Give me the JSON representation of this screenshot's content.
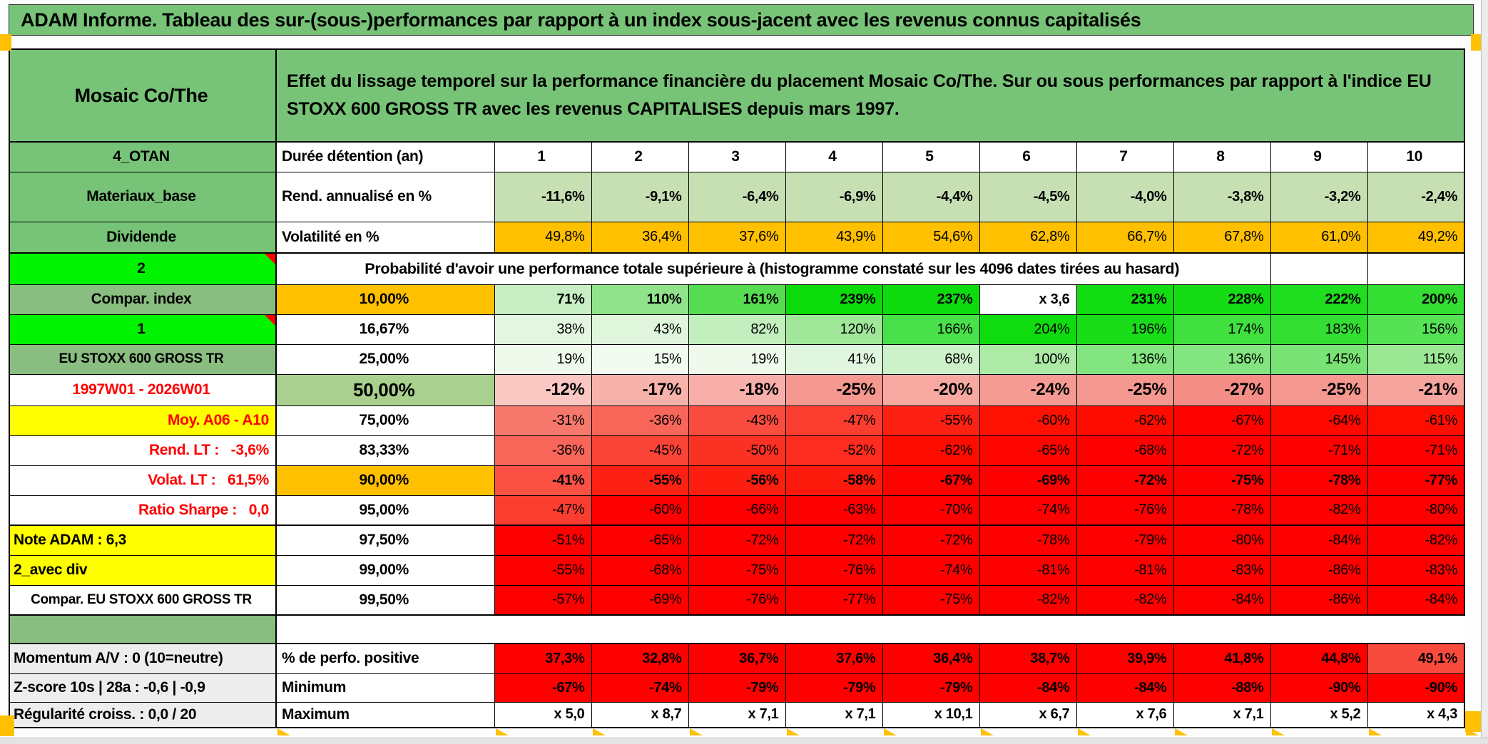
{
  "banner": {
    "title": "ADAM Informe. Tableau des sur-(sous-)performances par rapport à un index sous-jacent avec les revenus connus capitalisés"
  },
  "palette": {
    "header_green": "#77C377",
    "muted_green": "#8ABD80",
    "lime_green": "#00F300",
    "light_green": "#C6E0B4",
    "olive_green": "#A9D08E",
    "orange": "#FFC000",
    "yellow": "#FFFF00",
    "red": "#FE0000",
    "light_gray": "#EDEDED",
    "comment_marker_red": "#FF0000"
  },
  "table": {
    "rows": [
      {
        "kind": "header",
        "a": "Mosaic Co/The",
        "aBg": "#77C377",
        "desc": "Effet du lissage temporel sur la performance financière du placement Mosaic Co/The. Sur ou sous performances par rapport à l'indice EU STOXX 600 GROSS TR avec les revenus CAPITALISES depuis mars 1997.",
        "descBg": "#77C377",
        "thickB": true
      },
      {
        "a": "4_OTAN",
        "aBg": "#77C377",
        "b": "Durée détention (an)",
        "bLeft": true,
        "cells": [
          "1",
          "2",
          "3",
          "4",
          "5",
          "6",
          "7",
          "8",
          "9",
          "10"
        ],
        "cCenter": true,
        "bg": [
          "#FFFFFF",
          "#FFFFFF",
          "#FFFFFF",
          "#FFFFFF",
          "#FFFFFF",
          "#FFFFFF",
          "#FFFFFF",
          "#FFFFFF",
          "#FFFFFF",
          "#FFFFFF"
        ]
      },
      {
        "a": "Materiaux_base",
        "aBg": "#77C377",
        "b": "Rend. annualisé en %",
        "bLeft": true,
        "cBold": true,
        "cells": [
          "-11,6%",
          "-9,1%",
          "-6,4%",
          "-6,9%",
          "-4,4%",
          "-4,5%",
          "-4,0%",
          "-3,8%",
          "-3,2%",
          "-2,4%"
        ],
        "bg": [
          "#C6E0B4",
          "#C6E0B4",
          "#C6E0B4",
          "#C6E0B4",
          "#C6E0B4",
          "#C6E0B4",
          "#C6E0B4",
          "#C6E0B4",
          "#C6E0B4",
          "#C6E0B4"
        ]
      },
      {
        "a": "Dividende",
        "aBg": "#77C377",
        "b": "Volatilité en %",
        "bLeft": true,
        "thickB": true,
        "cells": [
          "49,8%",
          "36,4%",
          "37,6%",
          "43,9%",
          "54,6%",
          "62,8%",
          "66,7%",
          "67,8%",
          "61,0%",
          "49,2%"
        ],
        "bg": [
          "#FFC000",
          "#FFC000",
          "#FFC000",
          "#FFC000",
          "#FFC000",
          "#FFC000",
          "#FFC000",
          "#FFC000",
          "#FFC000",
          "#FFC000"
        ]
      },
      {
        "kind": "prob",
        "a": "2",
        "aBg": "#00F300",
        "comment": true,
        "merged": "Probabilité d'avoir une performance totale supérieure à (histogramme constaté sur les 4096 dates tirées au hasard)"
      },
      {
        "a": "Compar. index",
        "aBg": "#8ABD80",
        "b": "10,00%",
        "bBg": "#FFC000",
        "cBold": true,
        "cells": [
          "71%",
          "110%",
          "161%",
          "239%",
          "237%",
          "x 3,6",
          "231%",
          "228%",
          "222%",
          "200%"
        ],
        "bg": [
          "#C8EFC3",
          "#90E38A",
          "#55DC50",
          "#0BDB0B",
          "#0EDB0E",
          "#FFFFFF",
          "#12DC12",
          "#16DC16",
          "#1FDD1F",
          "#32DF32"
        ]
      },
      {
        "a": "1",
        "aBg": "#00F300",
        "comment": true,
        "b": "16,67%",
        "cells": [
          "38%",
          "43%",
          "82%",
          "120%",
          "166%",
          "204%",
          "196%",
          "174%",
          "183%",
          "156%"
        ],
        "bg": [
          "#E3F7E0",
          "#DFF6DC",
          "#C3EFBF",
          "#A0E79A",
          "#49E149",
          "#0FDC0F",
          "#19DD19",
          "#3FE03F",
          "#34DF34",
          "#55E255"
        ]
      },
      {
        "a": "EU STOXX 600 GROSS TR",
        "aBg": "#8ABD80",
        "aSmall": true,
        "b": "25,00%",
        "cells": [
          "19%",
          "15%",
          "19%",
          "41%",
          "68%",
          "100%",
          "136%",
          "136%",
          "145%",
          "115%"
        ],
        "bg": [
          "#EFFAED",
          "#F2FBF0",
          "#EFFAED",
          "#E1F6DE",
          "#CDF1C9",
          "#ACEAA6",
          "#83E57F",
          "#83E57F",
          "#79E375",
          "#9AE894"
        ]
      },
      {
        "a": "1997W01 - 2026W01",
        "aColor": "#FE0000",
        "b": "50,00%",
        "bBg": "#A9D08E",
        "bBig": true,
        "cBig": true,
        "cells": [
          "-12%",
          "-17%",
          "-18%",
          "-25%",
          "-20%",
          "-24%",
          "-25%",
          "-27%",
          "-25%",
          "-21%"
        ],
        "bg": [
          "#FAC7C3",
          "#F8B2AC",
          "#F8AFA9",
          "#F59890",
          "#F7A8A1",
          "#F69B93",
          "#F59890",
          "#F48E86",
          "#F59890",
          "#F6A59E"
        ]
      },
      {
        "a": "Moy. A06 - A10",
        "aBg": "#FFFF00",
        "aColor": "#FE0000",
        "aAlign": "right",
        "b": "75,00%",
        "cells": [
          "-31%",
          "-36%",
          "-43%",
          "-47%",
          "-55%",
          "-60%",
          "-62%",
          "-67%",
          "-64%",
          "-61%"
        ],
        "bg": [
          "#F7786C",
          "#F8665A",
          "#FA4C3F",
          "#FB3D30",
          "#FD2113",
          "#FE1102",
          "#FE0C00",
          "#FE0200",
          "#FE0800",
          "#FE0E01"
        ]
      },
      {
        "a": "Rend. LT :   -3,6%",
        "aColor": "#FE0000",
        "aAlign": "right",
        "b": "83,33%",
        "cells": [
          "-36%",
          "-45%",
          "-50%",
          "-52%",
          "-62%",
          "-65%",
          "-68%",
          "-72%",
          "-71%",
          "-71%"
        ],
        "bg": [
          "#F8665A",
          "#FA4437",
          "#FB3123",
          "#FC2C1E",
          "#FE0C00",
          "#FE0500",
          "#FE0000",
          "#FE0000",
          "#FE0000",
          "#FE0000"
        ]
      },
      {
        "a": "Volat. LT :   61,5%",
        "aColor": "#FE0000",
        "aAlign": "right",
        "b": "90,00%",
        "bBg": "#FFC000",
        "cBold": true,
        "cells": [
          "-41%",
          "-55%",
          "-56%",
          "-58%",
          "-67%",
          "-69%",
          "-72%",
          "-75%",
          "-78%",
          "-77%"
        ],
        "bg": [
          "#FA5144",
          "#FD2113",
          "#FD1E10",
          "#FC1A0C",
          "#FE0200",
          "#FE0000",
          "#FE0000",
          "#FE0000",
          "#FE0000",
          "#FE0000"
        ]
      },
      {
        "a": "Ratio Sharpe :   0,0",
        "aColor": "#FE0000",
        "aAlign": "right",
        "b": "95,00%",
        "thickB": true,
        "cells": [
          "-47%",
          "-60%",
          "-66%",
          "-63%",
          "-70%",
          "-74%",
          "-76%",
          "-78%",
          "-82%",
          "-80%"
        ],
        "bg": [
          "#FB3D30",
          "#FE0000",
          "#FE0000",
          "#FE0000",
          "#FE0000",
          "#FE0000",
          "#FE0000",
          "#FE0000",
          "#FE0000",
          "#FE0000"
        ]
      },
      {
        "a": "Note ADAM : 6,3",
        "aBg": "#FFFF00",
        "aAlign": "left",
        "b": "97,50%",
        "cells": [
          "-51%",
          "-65%",
          "-72%",
          "-72%",
          "-72%",
          "-78%",
          "-79%",
          "-80%",
          "-84%",
          "-82%"
        ],
        "bg": [
          "#FE0000",
          "#FE0000",
          "#FE0000",
          "#FE0000",
          "#FE0000",
          "#FE0000",
          "#FE0000",
          "#FE0000",
          "#FE0000",
          "#FE0000"
        ]
      },
      {
        "a": "2_avec div",
        "aBg": "#FFFF00",
        "aAlign": "left",
        "b": "99,00%",
        "cells": [
          "-55%",
          "-68%",
          "-75%",
          "-76%",
          "-74%",
          "-81%",
          "-81%",
          "-83%",
          "-86%",
          "-83%"
        ],
        "bg": [
          "#FE0000",
          "#FE0000",
          "#FE0000",
          "#FE0000",
          "#FE0000",
          "#FE0000",
          "#FE0000",
          "#FE0000",
          "#FE0000",
          "#FE0000"
        ]
      },
      {
        "a": "Compar. EU STOXX 600 GROSS TR",
        "aSmall": true,
        "b": "99,50%",
        "thickB": true,
        "cells": [
          "-57%",
          "-69%",
          "-76%",
          "-77%",
          "-75%",
          "-82%",
          "-82%",
          "-84%",
          "-86%",
          "-84%"
        ],
        "bg": [
          "#FE0000",
          "#FE0000",
          "#FE0000",
          "#FE0000",
          "#FE0000",
          "#FE0000",
          "#FE0000",
          "#FE0000",
          "#FE0000",
          "#FE0000"
        ]
      },
      {
        "kind": "gap",
        "a": "",
        "aBg": "#8ABD80"
      },
      {
        "a": "Momentum A/V : 0 (10=neutre)",
        "aBg": "#EDEDED",
        "aAlign": "left",
        "b": "% de perfo. positive",
        "bLeft": true,
        "cBold": true,
        "thickT": true,
        "cells": [
          "37,3%",
          "32,8%",
          "36,7%",
          "37,6%",
          "36,4%",
          "38,7%",
          "39,9%",
          "41,8%",
          "44,8%",
          "49,1%"
        ],
        "bg": [
          "#FE0000",
          "#FE0000",
          "#FE0000",
          "#FE0000",
          "#FE0000",
          "#FE0000",
          "#FE0000",
          "#FE0000",
          "#FE0000",
          "#F94A3E"
        ]
      },
      {
        "a": "Z-score 10s | 28a : -0,6 | -0,9",
        "aBg": "#EDEDED",
        "aAlign": "left",
        "b": "Minimum",
        "bLeft": true,
        "cBold": true,
        "cells": [
          "-67%",
          "-74%",
          "-79%",
          "-79%",
          "-79%",
          "-84%",
          "-84%",
          "-88%",
          "-90%",
          "-90%"
        ],
        "bg": [
          "#FE0000",
          "#FE0000",
          "#FE0000",
          "#FE0000",
          "#FE0000",
          "#FE0000",
          "#FE0000",
          "#FE0000",
          "#FE0000",
          "#FE0000"
        ]
      },
      {
        "a": "Régularité croiss. : 0,0 / 20",
        "aBg": "#EDEDED",
        "aAlign": "left",
        "b": "Maximum",
        "bLeft": true,
        "cBold": true,
        "thickB": true,
        "cells": [
          "x 5,0",
          "x 8,7",
          "x 7,1",
          "x 7,1",
          "x 10,1",
          "x 6,7",
          "x 7,6",
          "x 7,1",
          "x 5,2",
          "x 4,3"
        ],
        "bg": [
          "#FFFFFF",
          "#FFFFFF",
          "#FFFFFF",
          "#FFFFFF",
          "#FFFFFF",
          "#FFFFFF",
          "#FFFFFF",
          "#FFFFFF",
          "#FFFFFF",
          "#FFFFFF"
        ]
      }
    ]
  }
}
